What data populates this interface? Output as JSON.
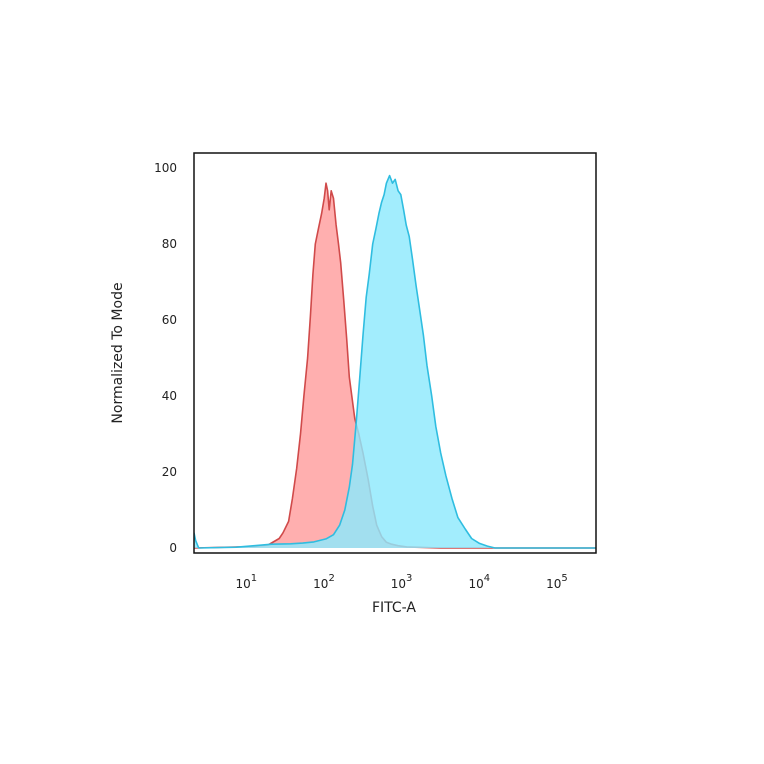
{
  "chart_data": {
    "type": "area",
    "title": "",
    "xlabel": "FITC-A",
    "ylabel": "Normalized To Mode",
    "x_scale": "log",
    "xlim": [
      2,
      300000
    ],
    "ylim": [
      0,
      100
    ],
    "grid": false,
    "legend": "none",
    "x_ticks": [
      {
        "value": 10,
        "base": "10",
        "exp": "1"
      },
      {
        "value": 100,
        "base": "10",
        "exp": "2"
      },
      {
        "value": 1000,
        "base": "10",
        "exp": "3"
      },
      {
        "value": 10000,
        "base": "10",
        "exp": "4"
      },
      {
        "value": 100000,
        "base": "10",
        "exp": "5"
      }
    ],
    "y_ticks": [
      {
        "value": 0,
        "label": "0"
      },
      {
        "value": 20,
        "label": "20"
      },
      {
        "value": 40,
        "label": "40"
      },
      {
        "value": 60,
        "label": "60"
      },
      {
        "value": 80,
        "label": "80"
      },
      {
        "value": 100,
        "label": "100"
      }
    ],
    "series": [
      {
        "fill": "#ff9d9d",
        "stroke": "#d04a4a",
        "points": [
          [
            2,
            0
          ],
          [
            12,
            0.4
          ],
          [
            18,
            0.8
          ],
          [
            25,
            2.5
          ],
          [
            28,
            4
          ],
          [
            33,
            7
          ],
          [
            37,
            13
          ],
          [
            42,
            21
          ],
          [
            47,
            30
          ],
          [
            52,
            40
          ],
          [
            58,
            50
          ],
          [
            63,
            61
          ],
          [
            68,
            72
          ],
          [
            73,
            80
          ],
          [
            80,
            84
          ],
          [
            88,
            88
          ],
          [
            95,
            92
          ],
          [
            100,
            96
          ],
          [
            105,
            94
          ],
          [
            110,
            89
          ],
          [
            117,
            94
          ],
          [
            125,
            92
          ],
          [
            135,
            85
          ],
          [
            145,
            80
          ],
          [
            155,
            75
          ],
          [
            170,
            65
          ],
          [
            185,
            55
          ],
          [
            200,
            45
          ],
          [
            215,
            40
          ],
          [
            235,
            34
          ],
          [
            265,
            30
          ],
          [
            300,
            25
          ],
          [
            350,
            18
          ],
          [
            400,
            11
          ],
          [
            450,
            6
          ],
          [
            520,
            3
          ],
          [
            600,
            1.5
          ],
          [
            700,
            1
          ],
          [
            850,
            0.6
          ],
          [
            1100,
            0.3
          ],
          [
            1400,
            0.2
          ],
          [
            3000,
            0
          ],
          [
            300000,
            0
          ]
        ]
      },
      {
        "fill": "#8ee9fc",
        "stroke": "#2fbde0",
        "points": [
          [
            2,
            4
          ],
          [
            2.1,
            2
          ],
          [
            2.3,
            0
          ],
          [
            7,
            0.2
          ],
          [
            12,
            0.6
          ],
          [
            20,
            1
          ],
          [
            35,
            1.1
          ],
          [
            50,
            1.3
          ],
          [
            70,
            1.6
          ],
          [
            100,
            2.4
          ],
          [
            125,
            3.5
          ],
          [
            150,
            6
          ],
          [
            175,
            10
          ],
          [
            200,
            16
          ],
          [
            220,
            22
          ],
          [
            245,
            33
          ],
          [
            270,
            44
          ],
          [
            300,
            56
          ],
          [
            330,
            66
          ],
          [
            360,
            72
          ],
          [
            400,
            80
          ],
          [
            440,
            84
          ],
          [
            480,
            88
          ],
          [
            520,
            91
          ],
          [
            560,
            93
          ],
          [
            600,
            96
          ],
          [
            660,
            98
          ],
          [
            720,
            96
          ],
          [
            780,
            97
          ],
          [
            850,
            94
          ],
          [
            920,
            93
          ],
          [
            1000,
            89
          ],
          [
            1080,
            85
          ],
          [
            1180,
            82
          ],
          [
            1300,
            76
          ],
          [
            1450,
            69
          ],
          [
            1600,
            63
          ],
          [
            1800,
            56
          ],
          [
            2000,
            48
          ],
          [
            2300,
            40
          ],
          [
            2600,
            32
          ],
          [
            3000,
            25
          ],
          [
            3500,
            19
          ],
          [
            4200,
            13
          ],
          [
            5000,
            8
          ],
          [
            6200,
            5
          ],
          [
            7500,
            2.5
          ],
          [
            9500,
            1.2
          ],
          [
            12000,
            0.5
          ],
          [
            15000,
            0
          ],
          [
            300000,
            0
          ]
        ]
      }
    ]
  }
}
